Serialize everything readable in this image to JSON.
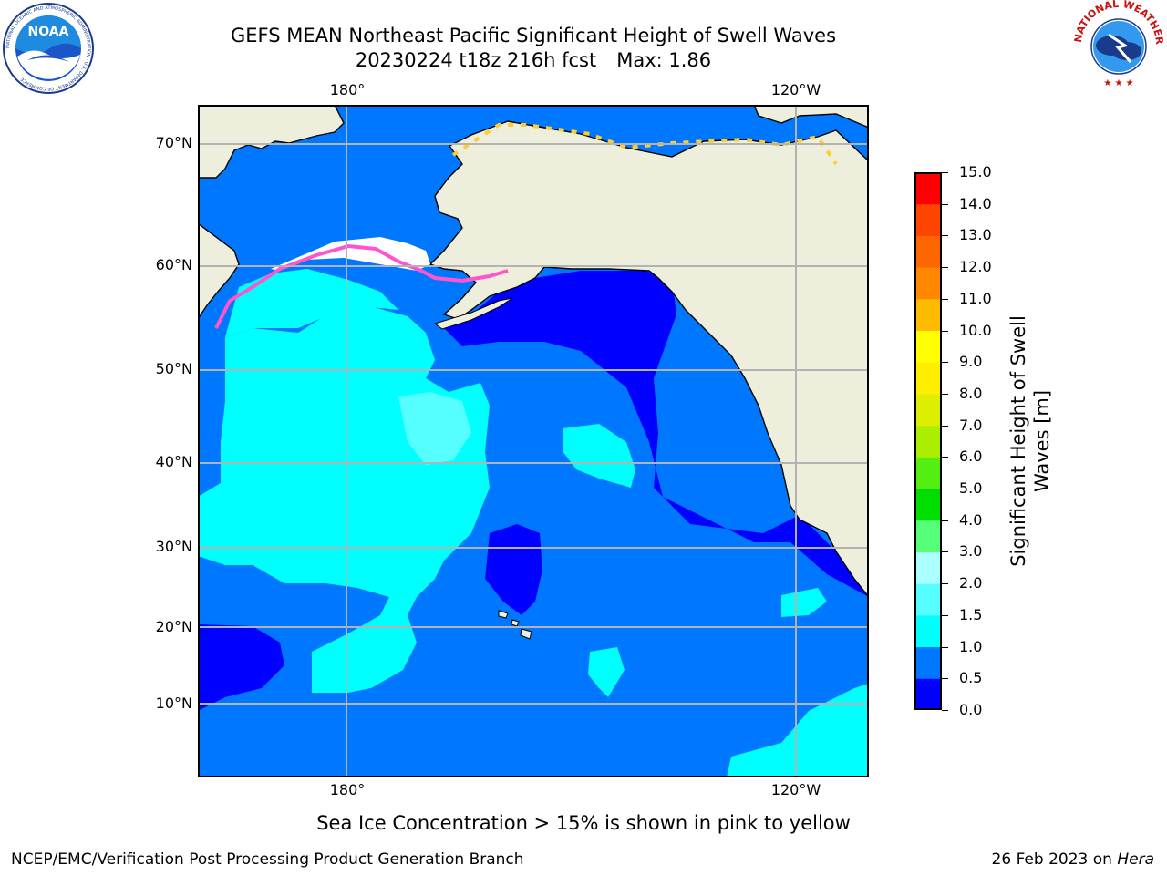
{
  "header": {
    "title_line1": "GEFS MEAN Northeast Pacific Significant Height of Swell Waves",
    "title_date_run": "20230224 t18z 216h fcst",
    "title_max": "Max: 1.86"
  },
  "logos": {
    "left": {
      "text": "NOAA",
      "ring_text": "NATIONAL OCEANIC AND ATMOSPHERIC ADMINISTRATION · U.S. DEPARTMENT OF COMMERCE"
    },
    "right": {
      "ring_text": "NATIONAL WEATHER SERVICE"
    }
  },
  "map": {
    "lon_labels": [
      "180°",
      "120°W"
    ],
    "lat_labels": [
      "70°N",
      "60°N",
      "50°N",
      "40°N",
      "30°N",
      "20°N",
      "10°N"
    ],
    "colors": {
      "land": "#eeeedd",
      "ice_free_land_gap": "#ffffff",
      "gridline": "#b3b3b3"
    }
  },
  "colorbar": {
    "ticks": [
      "0.0",
      "0.5",
      "1.0",
      "1.5",
      "2.0",
      "3.0",
      "4.0",
      "5.0",
      "6.0",
      "7.0",
      "8.0",
      "9.0",
      "10.0",
      "11.0",
      "12.0",
      "13.0",
      "14.0",
      "15.0"
    ],
    "colors": [
      "#0000ff",
      "#0077ff",
      "#00ffff",
      "#55ffff",
      "#aaffff",
      "#55ff77",
      "#00dd00",
      "#55ee11",
      "#aaee00",
      "#ddee00",
      "#ffee00",
      "#ffff00",
      "#ffbb00",
      "#ff8800",
      "#ff6600",
      "#ff4400",
      "#ff0000"
    ],
    "label_line1": "Significant Height of Swell",
    "label_line2": "Waves [m]"
  },
  "note": "Sea Ice Concentration > 15% is shown in pink to yellow",
  "footer": {
    "left": "NCEP/EMC/Verification Post Processing Product Generation Branch",
    "right_date": "26 Feb 2023 on ",
    "right_machine": "Hera"
  }
}
